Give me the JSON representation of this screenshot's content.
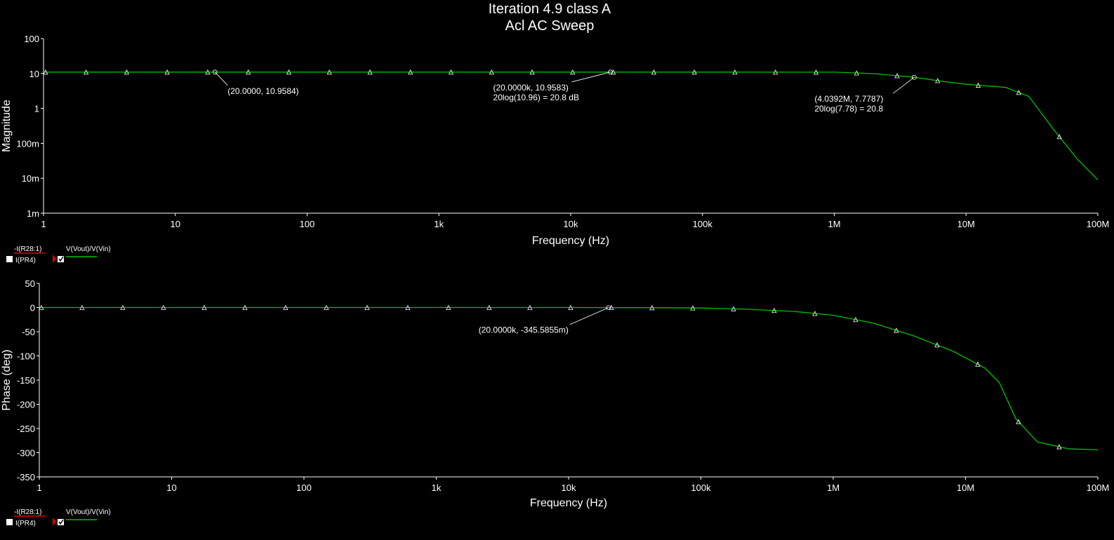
{
  "title": {
    "line1": "Iteration 4.9 class A",
    "line2": "Acl AC Sweep"
  },
  "colors": {
    "background": "#000000",
    "trace": "#00c000",
    "axis": "#ffffff",
    "legend_red": "#e00000"
  },
  "legend": {
    "items": [
      {
        "label": "-I(R28:1)",
        "color": "#e00000",
        "checked": false
      },
      {
        "label": "I(PR4)",
        "color": "#e00000",
        "checked": false
      },
      {
        "label": "V(Vout)/V(Vin)",
        "color": "#00c000",
        "checked": true
      }
    ]
  },
  "chart_data": [
    {
      "type": "line",
      "name": "magnitude",
      "xlabel": "Frequency (Hz)",
      "ylabel": "Magnitude",
      "xscale": "log",
      "yscale": "log",
      "xlim": [
        1,
        100000000
      ],
      "ylim": [
        0.001,
        100
      ],
      "xticks": [
        "1",
        "10",
        "100",
        "1k",
        "10k",
        "100k",
        "1M",
        "10M",
        "100M"
      ],
      "yticks": [
        "1m",
        "10m",
        "100m",
        "1",
        "10",
        "100"
      ],
      "series": [
        {
          "name": "V(Vout)/V(Vin)",
          "x": [
            1,
            10,
            100,
            1000,
            10000,
            100000,
            1000000,
            2000000,
            4039200,
            7000000,
            10000000,
            20000000,
            30000000,
            45000000,
            70000000,
            100000000
          ],
          "y": [
            10.96,
            10.96,
            10.96,
            10.96,
            10.96,
            10.96,
            10.9,
            9.9,
            7.78,
            5.8,
            4.9,
            4.0,
            2.2,
            0.28,
            0.035,
            0.009
          ]
        }
      ],
      "annotations": [
        {
          "x": 20,
          "y": 10.9584,
          "lines": [
            "(20.0000, 10.9584)"
          ]
        },
        {
          "x": 20000,
          "y": 10.9583,
          "lines": [
            "(20.0000k, 10.9583)",
            "20log(10.96) = 20.8 dB"
          ]
        },
        {
          "x": 4039200,
          "y": 7.7787,
          "lines": [
            "(4.0392M, 7.7787)",
            "20log(7.78) = 20.8"
          ]
        }
      ]
    },
    {
      "type": "line",
      "name": "phase",
      "xlabel": "Frequency (Hz)",
      "ylabel": "Phase (deg)",
      "xscale": "log",
      "yscale": "linear",
      "xlim": [
        1,
        100000000
      ],
      "ylim": [
        -350,
        50
      ],
      "xticks": [
        "1",
        "10",
        "100",
        "1k",
        "10k",
        "100k",
        "1M",
        "10M",
        "100M"
      ],
      "yticks": [
        "50",
        "0",
        "-50",
        "-100",
        "-150",
        "-200",
        "-250",
        "-300",
        "-350"
      ],
      "series": [
        {
          "name": "V(Vout)/V(Vin)",
          "x": [
            1,
            10,
            100,
            1000,
            10000,
            50000,
            100000,
            200000,
            500000,
            1000000,
            2000000,
            4000000,
            8000000,
            14000000,
            18000000,
            24000000,
            35000000,
            60000000,
            100000000
          ],
          "y": [
            0,
            0,
            0,
            0,
            0,
            -0.5,
            -1,
            -3,
            -8,
            -16,
            -32,
            -58,
            -90,
            -125,
            -155,
            -230,
            -278,
            -292,
            -294
          ]
        }
      ],
      "annotations": [
        {
          "x": 20000,
          "y": -0.3455855,
          "lines": [
            "(20.0000k, -345.5855m)"
          ]
        }
      ]
    }
  ]
}
